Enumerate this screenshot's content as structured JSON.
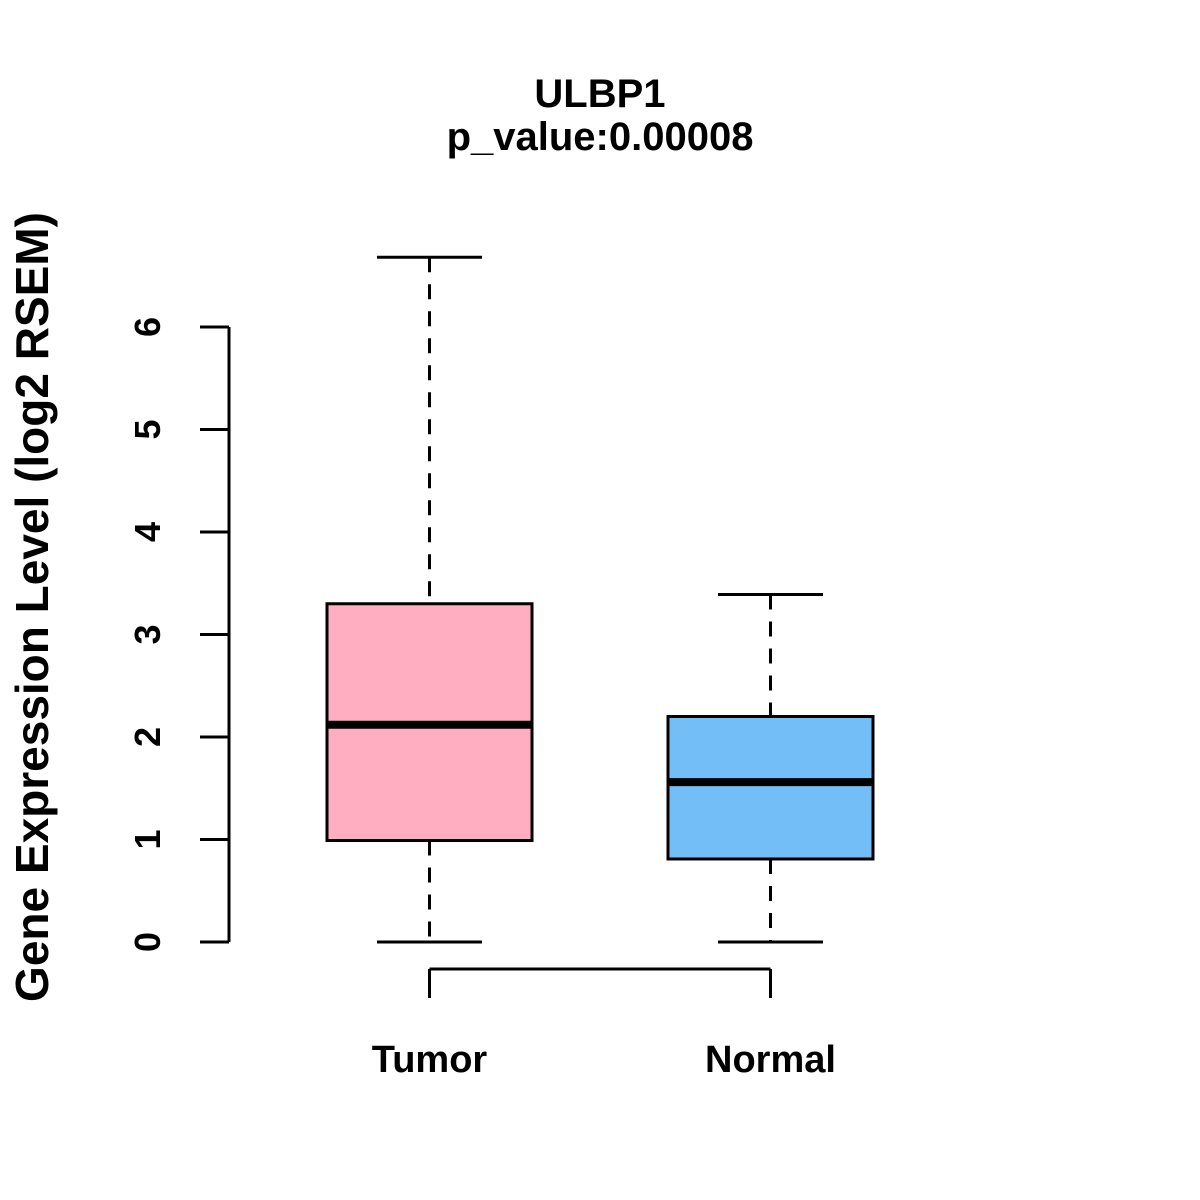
{
  "chart_data": {
    "type": "boxplot",
    "title": "ULBP1",
    "subtitle": "p_value:0.00008",
    "ylabel": "Gene Expression Level (log2 RSEM)",
    "categories": [
      "Tumor",
      "Normal"
    ],
    "series": [
      {
        "name": "Tumor",
        "whisker_low": 0,
        "q1": 0.99,
        "median": 2.12,
        "q3": 3.3,
        "whisker_high": 6.68,
        "fill": "#FFAEC1"
      },
      {
        "name": "Normal",
        "whisker_low": 0,
        "q1": 0.81,
        "median": 1.56,
        "q3": 2.2,
        "whisker_high": 3.39,
        "fill": "#74BEF8"
      }
    ],
    "y_axis": {
      "ticks": [
        0,
        1,
        2,
        3,
        4,
        5,
        6
      ],
      "range": [
        0,
        6
      ]
    },
    "axis_color": "#000000",
    "box_border_color": "#000000",
    "median_color": "#000000",
    "grid": false,
    "legend": "none"
  }
}
